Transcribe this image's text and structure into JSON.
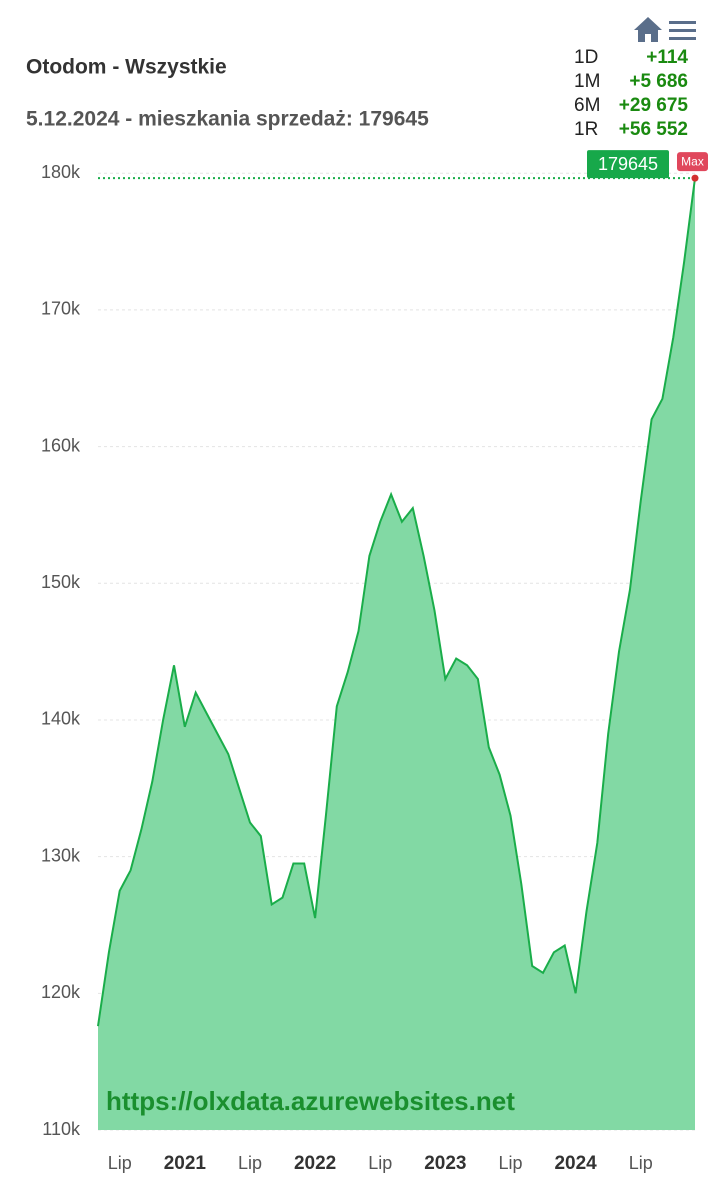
{
  "chart_data": {
    "type": "area",
    "title": "Otodom - Wszystkie",
    "subtitle": "5.12.2024 - mieszkania sprzedaż: 179645",
    "watermark": "https://olxdata.azurewebsites.net",
    "max_label": "Max",
    "stats": [
      {
        "period": "1D",
        "change": "+114"
      },
      {
        "period": "1M",
        "change": "+5 686"
      },
      {
        "period": "6M",
        "change": "+29 675"
      },
      {
        "period": "1R",
        "change": "+56 552"
      }
    ],
    "categories": [
      null,
      null,
      "Lip",
      null,
      null,
      null,
      null,
      null,
      "2021",
      null,
      null,
      null,
      null,
      null,
      "Lip",
      null,
      null,
      null,
      null,
      null,
      "2022",
      null,
      null,
      null,
      null,
      null,
      "Lip",
      null,
      null,
      null,
      null,
      null,
      "2023",
      null,
      null,
      null,
      null,
      null,
      "Lip",
      null,
      null,
      null,
      null,
      null,
      "2024",
      null,
      null,
      null,
      null,
      null,
      "Lip",
      null,
      null,
      null,
      null,
      null
    ],
    "values": [
      117600,
      123000,
      127500,
      129000,
      132000,
      135500,
      140000,
      144000,
      139500,
      142000,
      140500,
      139000,
      137500,
      135000,
      132500,
      131500,
      126500,
      127000,
      129500,
      129500,
      125500,
      133000,
      141000,
      143500,
      146500,
      152000,
      154500,
      156500,
      154500,
      155500,
      152000,
      148000,
      143000,
      144500,
      144000,
      143000,
      138000,
      136000,
      133000,
      128000,
      122000,
      121500,
      123000,
      123500,
      120000,
      126000,
      131000,
      139000,
      145000,
      149500,
      156000,
      162000,
      163500,
      168000,
      173500,
      179645
    ],
    "color": "#1aad4a",
    "fill_color": "#82d9a4",
    "ylim": [
      110000,
      181700
    ],
    "yticks": [
      {
        "value": 110000,
        "label": "110k"
      },
      {
        "value": 120000,
        "label": "120k"
      },
      {
        "value": 130000,
        "label": "130k"
      },
      {
        "value": 140000,
        "label": "140k"
      },
      {
        "value": 150000,
        "label": "150k"
      },
      {
        "value": 160000,
        "label": "160k"
      },
      {
        "value": 170000,
        "label": "170k"
      },
      {
        "value": 180000,
        "label": "180k"
      }
    ],
    "grid": true
  }
}
